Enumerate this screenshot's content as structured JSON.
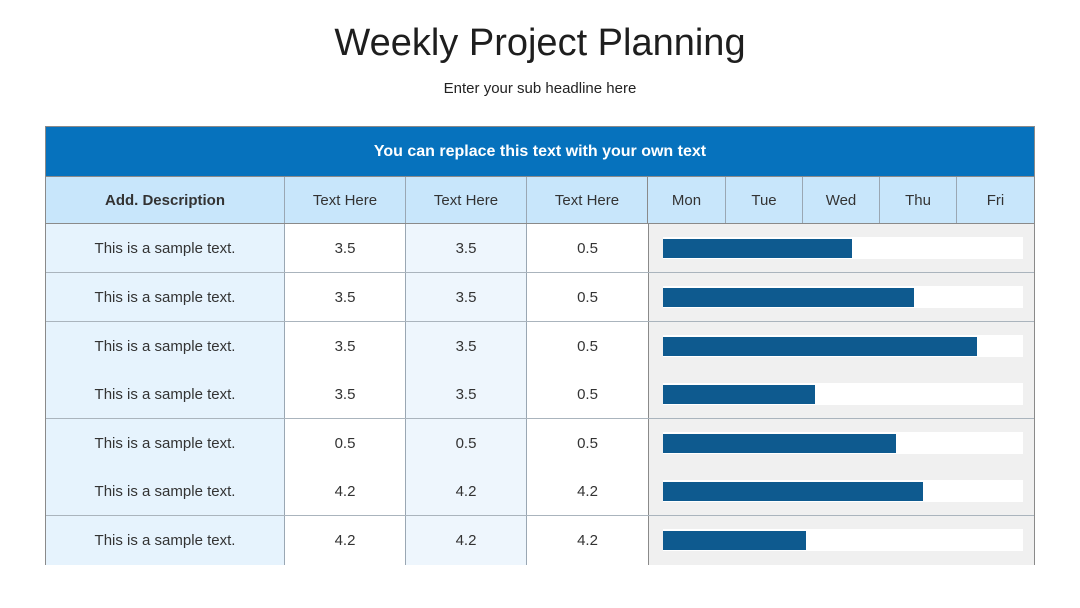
{
  "header": {
    "title": "Weekly Project Planning",
    "subtitle": "Enter your sub headline here"
  },
  "table": {
    "banner": "You can replace this text with your own text",
    "columns": {
      "description": "Add. Description",
      "col1": "Text Here",
      "col2": "Text Here",
      "col3": "Text Here"
    },
    "days": [
      "Mon",
      "Tue",
      "Wed",
      "Thu",
      "Fri"
    ],
    "rows": [
      {
        "description": "This is a sample text.",
        "v1": "3.5",
        "v2": "3.5",
        "v3": "0.5",
        "progress": 0.525
      },
      {
        "description": "This is a sample text.",
        "v1": "3.5",
        "v2": "3.5",
        "v3": "0.5",
        "progress": 0.697
      },
      {
        "description": "This is a sample text.",
        "v1": "3.5",
        "v2": "3.5",
        "v3": "0.5",
        "progress": 0.872
      },
      {
        "description": "This is a sample text.",
        "v1": "3.5",
        "v2": "3.5",
        "v3": "0.5",
        "progress": 0.422
      },
      {
        "description": "This is a sample text.",
        "v1": "0.5",
        "v2": "0.5",
        "v3": "0.5",
        "progress": 0.647
      },
      {
        "description": "This is a sample text.",
        "v1": "4.2",
        "v2": "4.2",
        "v3": "4.2",
        "progress": 0.722
      },
      {
        "description": "This is a sample text.",
        "v1": "4.2",
        "v2": "4.2",
        "v3": "4.2",
        "progress": 0.397
      }
    ],
    "colors": {
      "banner": "#0672bd",
      "header_row": "#c8e6fb",
      "bar": "#0e5a8f"
    }
  }
}
